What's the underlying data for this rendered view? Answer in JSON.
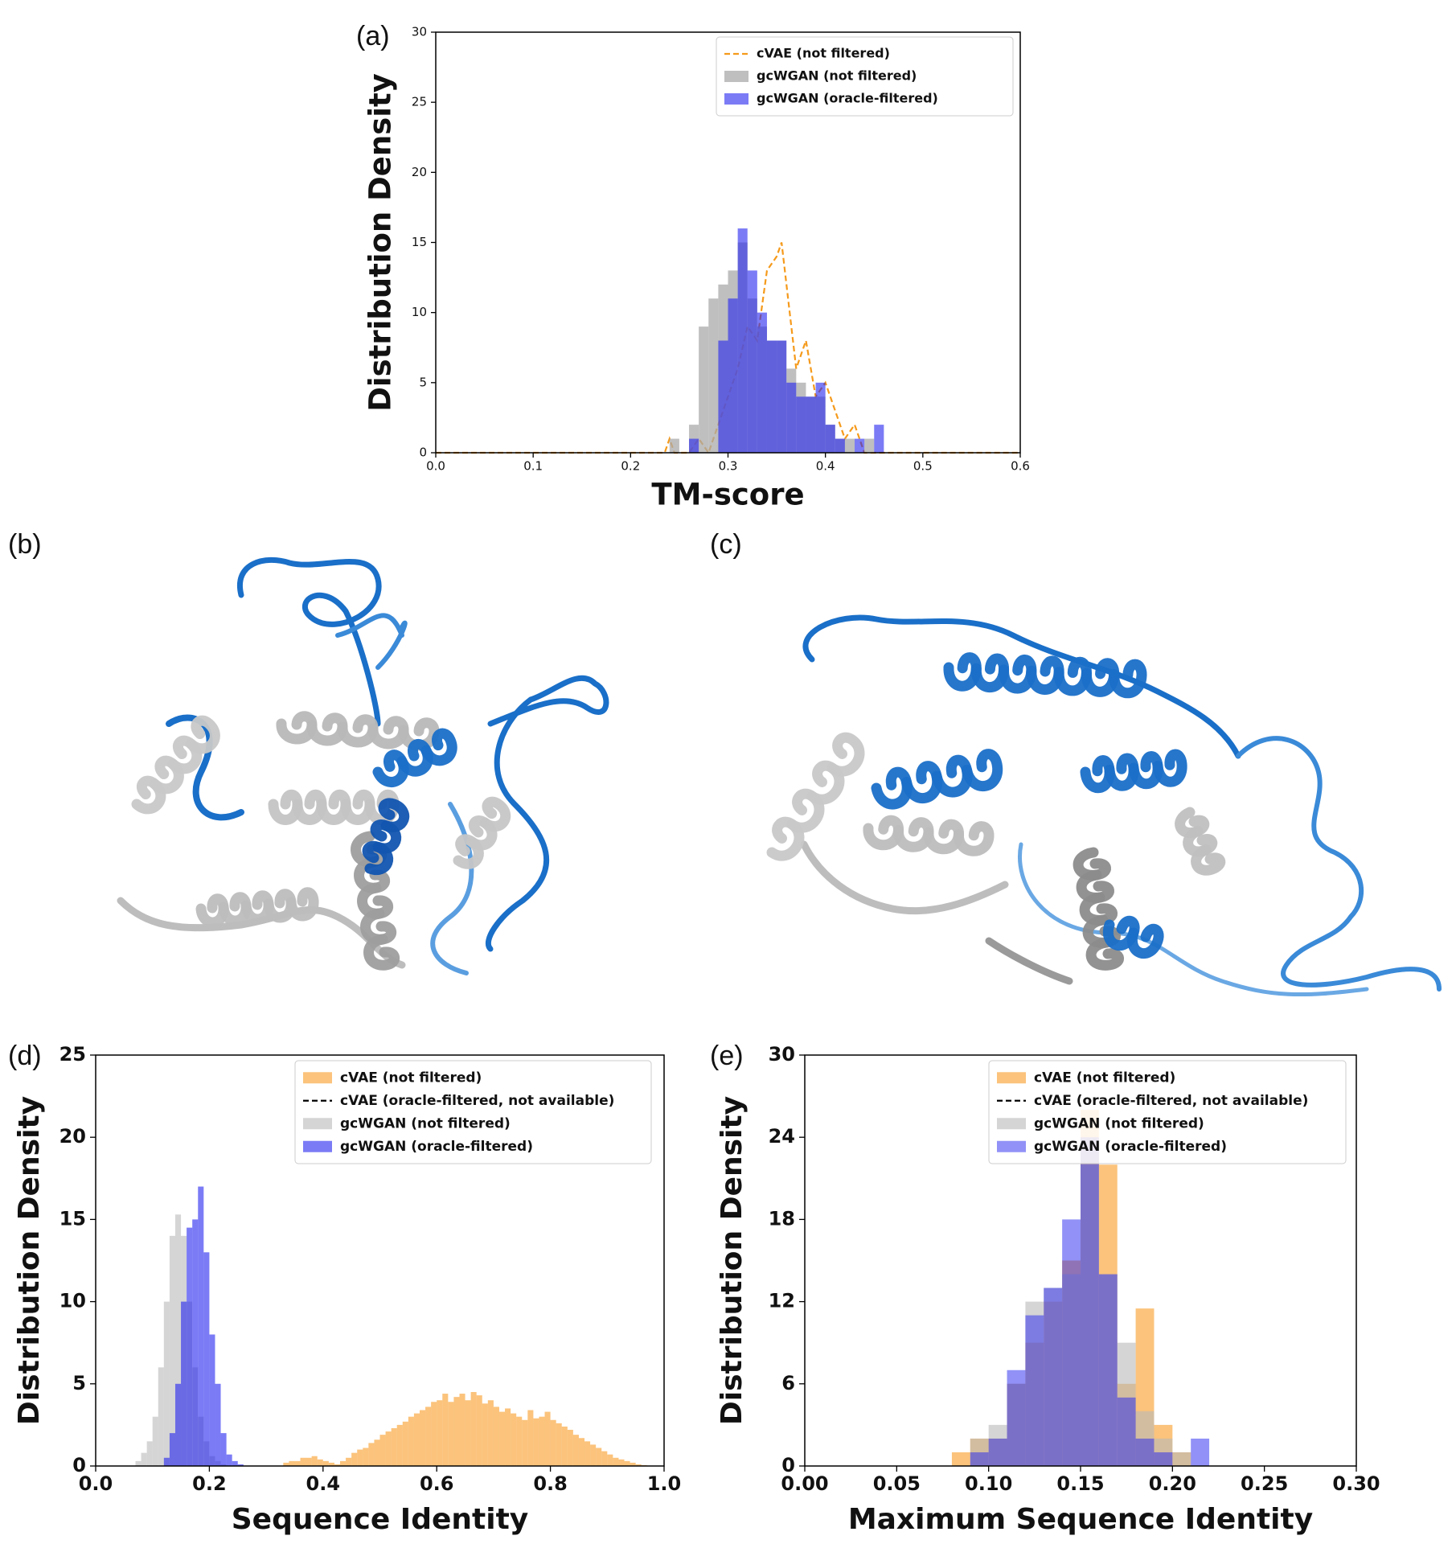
{
  "chart_data": [
    {
      "type": "histogram",
      "panel_label": "(a)",
      "xlabel": "TM-score",
      "ylabel": "Distribution Density",
      "xlim": [
        0,
        0.6
      ],
      "xticks": [
        {
          "value": 0,
          "label": "0.0"
        },
        0.1,
        0.2,
        0.3,
        0.4,
        0.5,
        0.6
      ],
      "ylim": [
        0,
        30
      ],
      "yticks": [
        0,
        5,
        10,
        15,
        20,
        25,
        30
      ],
      "legend": "upper right",
      "series": [
        {
          "name": "cVAE (not filtered)",
          "style": "dashed",
          "color": "#f59a1b",
          "opacity": 1,
          "x": [
            0,
            0.235,
            0.24,
            0.245,
            0.26,
            0.27,
            0.28,
            0.29,
            0.3,
            0.31,
            0.32,
            0.33,
            0.34,
            0.35,
            0.355,
            0.36,
            0.37,
            0.38,
            0.39,
            0.4,
            0.41,
            0.42,
            0.43,
            0.44,
            0.45,
            0.6
          ],
          "values": [
            0,
            0,
            1,
            0,
            0,
            1,
            0,
            2,
            4,
            6,
            9,
            8,
            13,
            14,
            15,
            12,
            6,
            8,
            4,
            5,
            3,
            1,
            2,
            0,
            0,
            0
          ]
        },
        {
          "name": "gcWGAN (not filtered)",
          "style": "bar",
          "color": "#a9a9a9",
          "opacity": 0.75,
          "bins": [
            0.24,
            0.25,
            0.26,
            0.27,
            0.28,
            0.29,
            0.3,
            0.31,
            0.32,
            0.33,
            0.34,
            0.35,
            0.36,
            0.37,
            0.38,
            0.39,
            0.4,
            0.41,
            0.42,
            0.43,
            0.44,
            0.45,
            0.46
          ],
          "values": [
            1,
            0,
            2,
            9,
            11,
            12,
            13,
            15,
            11,
            9,
            8,
            8,
            6,
            5,
            4,
            4,
            2,
            1,
            1,
            0,
            1,
            0
          ]
        },
        {
          "name": "gcWGAN (oracle-filtered)",
          "style": "bar",
          "color": "#2323f0",
          "opacity": 0.6,
          "bins": [
            0.24,
            0.25,
            0.26,
            0.27,
            0.28,
            0.29,
            0.3,
            0.31,
            0.32,
            0.33,
            0.34,
            0.35,
            0.36,
            0.37,
            0.38,
            0.39,
            0.4,
            0.41,
            0.42,
            0.43,
            0.44,
            0.45,
            0.46
          ],
          "values": [
            0,
            0,
            1,
            0,
            0,
            8,
            11,
            16,
            13,
            10,
            8,
            8,
            5,
            4,
            4,
            5,
            2,
            1,
            0,
            1,
            0,
            2
          ]
        }
      ]
    },
    {
      "type": "histogram",
      "panel_label": "(d)",
      "xlabel": "Sequence Identity",
      "ylabel": "Distribution Density",
      "xlim": [
        0,
        1
      ],
      "xticks": [
        {
          "value": 0,
          "label": "0.0"
        },
        0.2,
        0.4,
        0.6,
        0.8,
        {
          "value": 1,
          "label": "1.0"
        }
      ],
      "ylim": [
        0,
        25
      ],
      "yticks": [
        0,
        5,
        10,
        15,
        20,
        25
      ],
      "legend": "upper right",
      "series": [
        {
          "name": "cVAE (not filtered)",
          "style": "bar",
          "color": "#f99b25",
          "opacity": 0.6,
          "bins": [
            0.33,
            0.34,
            0.35,
            0.36,
            0.37,
            0.38,
            0.39,
            0.4,
            0.41,
            0.42,
            0.43,
            0.44,
            0.45,
            0.46,
            0.47,
            0.48,
            0.49,
            0.5,
            0.51,
            0.52,
            0.53,
            0.54,
            0.55,
            0.56,
            0.57,
            0.58,
            0.59,
            0.6,
            0.61,
            0.62,
            0.63,
            0.64,
            0.65,
            0.66,
            0.67,
            0.68,
            0.69,
            0.7,
            0.71,
            0.72,
            0.73,
            0.74,
            0.75,
            0.76,
            0.77,
            0.78,
            0.79,
            0.8,
            0.81,
            0.82,
            0.83,
            0.84,
            0.85,
            0.86,
            0.87,
            0.88,
            0.89,
            0.9,
            0.91,
            0.92,
            0.93,
            0.94,
            0.95,
            0.96,
            0.97
          ],
          "values": [
            0.2,
            0.3,
            0.3,
            0.5,
            0.5,
            0.6,
            0.4,
            0.3,
            0.2,
            0.1,
            0.3,
            0.5,
            0.8,
            1.0,
            1.1,
            1.4,
            1.6,
            1.9,
            2.1,
            2.3,
            2.5,
            2.7,
            3.0,
            3.2,
            3.4,
            3.6,
            3.9,
            4.0,
            4.4,
            3.9,
            4.2,
            4.4,
            4.0,
            4.5,
            4.3,
            3.8,
            4.0,
            3.6,
            3.3,
            3.5,
            3.2,
            3.0,
            2.8,
            3.4,
            2.9,
            3.0,
            3.3,
            2.8,
            2.6,
            2.4,
            2.2,
            1.9,
            1.7,
            1.5,
            1.3,
            1.1,
            0.9,
            0.7,
            0.5,
            0.4,
            0.3,
            0.2,
            0.1,
            0.05
          ]
        },
        {
          "name": "cVAE (oracle-filtered, not available)",
          "style": "dashed",
          "color": "#000000",
          "opacity": 1,
          "x": [],
          "values": []
        },
        {
          "name": "gcWGAN (not filtered)",
          "style": "bar",
          "color": "#b9b9b9",
          "opacity": 0.6,
          "bins": [
            0.07,
            0.08,
            0.09,
            0.1,
            0.11,
            0.12,
            0.13,
            0.14,
            0.15,
            0.16,
            0.17,
            0.18,
            0.19,
            0.2,
            0.21,
            0.22,
            0.23,
            0.24,
            0.25,
            0.26,
            0.27
          ],
          "values": [
            0.3,
            0.8,
            1.5,
            3,
            6,
            10,
            14,
            15.3,
            14,
            10,
            6,
            3,
            1.5,
            0.6,
            0.3,
            0.1,
            0,
            0,
            0,
            0
          ]
        },
        {
          "name": "gcWGAN (oracle-filtered)",
          "style": "bar",
          "color": "#2323f0",
          "opacity": 0.6,
          "bins": [
            0.12,
            0.13,
            0.14,
            0.15,
            0.16,
            0.17,
            0.18,
            0.19,
            0.2,
            0.21,
            0.22,
            0.23,
            0.24,
            0.25,
            0.26
          ],
          "values": [
            0.5,
            2,
            5,
            10,
            14.5,
            15,
            17,
            13,
            8,
            5,
            2,
            0.7,
            0.3,
            0.1
          ]
        }
      ]
    },
    {
      "type": "histogram",
      "panel_label": "(e)",
      "xlabel": "Maximum Sequence Identity",
      "ylabel": "Distribution Density",
      "xlim": [
        0,
        0.3
      ],
      "xticks": [
        {
          "value": 0,
          "label": "0.00"
        },
        0.05,
        {
          "value": 0.1,
          "label": "0.10"
        },
        0.15,
        {
          "value": 0.2,
          "label": "0.20"
        },
        0.25,
        {
          "value": 0.3,
          "label": "0.30"
        }
      ],
      "ylim": [
        0,
        30
      ],
      "yticks": [
        0,
        6,
        12,
        18,
        24,
        30
      ],
      "legend": "upper right",
      "series": [
        {
          "name": "cVAE (not filtered)",
          "style": "bar",
          "color": "#f99b25",
          "opacity": 0.6,
          "bins": [
            0.08,
            0.09,
            0.1,
            0.11,
            0.12,
            0.13,
            0.14,
            0.15,
            0.16,
            0.17,
            0.18,
            0.19,
            0.2,
            0.21
          ],
          "values": [
            1,
            2,
            2,
            6,
            9,
            12,
            15,
            26,
            22,
            6,
            11.5,
            3,
            1
          ]
        },
        {
          "name": "cVAE (oracle-filtered, not available)",
          "style": "dashed",
          "color": "#000000",
          "opacity": 1,
          "x": [],
          "values": []
        },
        {
          "name": "gcWGAN (not filtered)",
          "style": "bar",
          "color": "#b9b9b9",
          "opacity": 0.6,
          "bins": [
            0.09,
            0.1,
            0.11,
            0.12,
            0.13,
            0.14,
            0.15,
            0.16,
            0.17,
            0.18,
            0.19,
            0.2,
            0.21
          ],
          "values": [
            2,
            3,
            6,
            12,
            13,
            14,
            22,
            14,
            9,
            4,
            2,
            1
          ]
        },
        {
          "name": "gcWGAN (oracle-filtered)",
          "style": "bar",
          "color": "#2323f0",
          "opacity": 0.5,
          "bins": [
            0.09,
            0.1,
            0.11,
            0.12,
            0.13,
            0.14,
            0.15,
            0.16,
            0.17,
            0.18,
            0.19,
            0.2,
            0.21,
            0.22
          ],
          "values": [
            1,
            2,
            7,
            11,
            13,
            18,
            24,
            14,
            5,
            2,
            1,
            0,
            2
          ]
        }
      ]
    }
  ],
  "structure_panels": [
    {
      "label": "(b)"
    },
    {
      "label": "(c)"
    }
  ]
}
